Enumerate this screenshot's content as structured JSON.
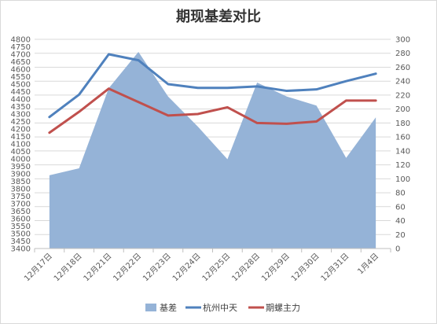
{
  "chart_data": {
    "type": "line",
    "title": "期现基差对比",
    "categories": [
      "12月17日",
      "12月18日",
      "12月21日",
      "12月22日",
      "12月23日",
      "12月24日",
      "12月25日",
      "12月28日",
      "12月29日",
      "12月30日",
      "12月31日",
      "1月4日"
    ],
    "series": [
      {
        "name": "基差",
        "type": "area",
        "axis": "right",
        "color": "#95b3d7",
        "values": [
          105,
          115,
          230,
          282,
          218,
          175,
          128,
          238,
          218,
          205,
          130,
          188
        ]
      },
      {
        "name": "杭州中天",
        "type": "line",
        "axis": "left",
        "color": "#4f81bd",
        "values": [
          4280,
          4430,
          4700,
          4660,
          4500,
          4475,
          4475,
          4485,
          4455,
          4465,
          4520,
          4570
        ]
      },
      {
        "name": "期螺主力",
        "type": "line",
        "axis": "left",
        "color": "#c0504d",
        "values": [
          4175,
          4315,
          4470,
          4380,
          4290,
          4300,
          4345,
          4240,
          4235,
          4250,
          4390,
          4390
        ]
      }
    ],
    "y_left": {
      "min": 3400,
      "max": 4800,
      "step": 50,
      "ticks": [
        "3400",
        "3450",
        "3500",
        "3550",
        "3600",
        "3650",
        "3700",
        "3750",
        "3800",
        "3850",
        "3900",
        "3950",
        "4000",
        "4050",
        "4100",
        "4150",
        "4200",
        "4250",
        "4300",
        "4350",
        "4400",
        "4450",
        "4500",
        "4550",
        "4600",
        "4650",
        "4700",
        "4750",
        "4800"
      ]
    },
    "y_right": {
      "min": 0,
      "max": 300,
      "step": 20,
      "ticks": [
        "0",
        "20",
        "40",
        "60",
        "80",
        "100",
        "120",
        "140",
        "160",
        "180",
        "200",
        "220",
        "240",
        "260",
        "280",
        "300"
      ]
    },
    "grid": true,
    "legend_position": "bottom"
  }
}
